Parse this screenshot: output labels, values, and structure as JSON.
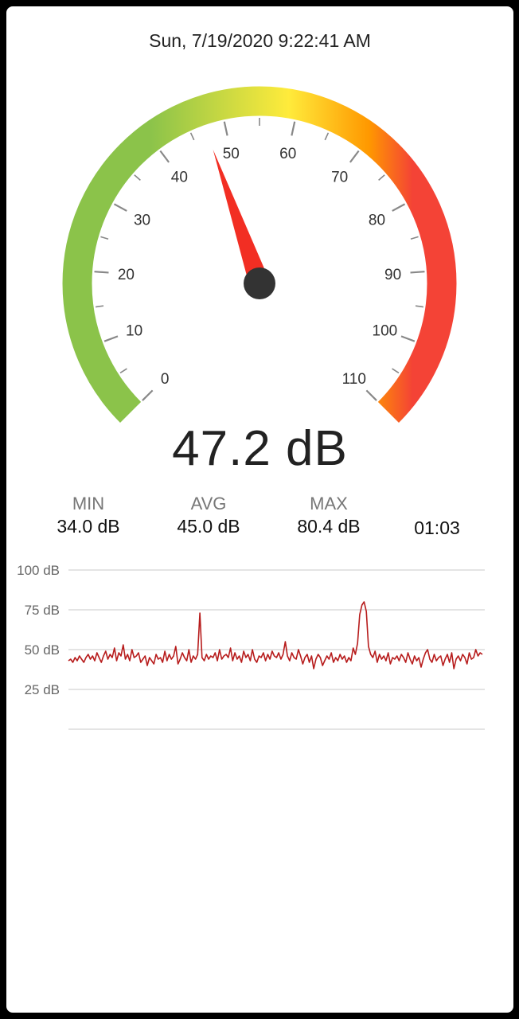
{
  "datetime": "Sun, 7/19/2020 9:22:41 AM",
  "gauge": {
    "min": 0,
    "max": 110,
    "value": 47.2,
    "tick_labels": [
      "0",
      "10",
      "20",
      "30",
      "40",
      "50",
      "60",
      "70",
      "80",
      "90",
      "100",
      "110"
    ],
    "colors": [
      "#8bc34a",
      "#ffeb3b",
      "#ff9800",
      "#f44336"
    ],
    "needle_color": "#f22e23",
    "hub_color": "#333333"
  },
  "reading": "47.2 dB",
  "stats": {
    "min_label": "MIN",
    "min_value": "34.0 dB",
    "avg_label": "AVG",
    "avg_value": "45.0 dB",
    "max_label": "MAX",
    "max_value": "80.4 dB",
    "elapsed": "01:03"
  },
  "chart_data": {
    "type": "line",
    "ylim": [
      0,
      100
    ],
    "ytick_labels": [
      "100 dB",
      "75 dB",
      "50 dB",
      "25 dB"
    ],
    "grid": true,
    "series": [
      {
        "color": "#b71c1c",
        "values": [
          43,
          44,
          42,
          45,
          43,
          46,
          44,
          42,
          45,
          47,
          44,
          46,
          43,
          48,
          45,
          42,
          46,
          49,
          44,
          47,
          45,
          51,
          43,
          48,
          46,
          53,
          44,
          47,
          43,
          50,
          45,
          46,
          48,
          42,
          44,
          46,
          40,
          45,
          43,
          41,
          47,
          44,
          45,
          42,
          49,
          43,
          47,
          44,
          46,
          52,
          41,
          44,
          48,
          45,
          43,
          50,
          42,
          46,
          44,
          47,
          73,
          45,
          43,
          47,
          44,
          46,
          45,
          48,
          43,
          50,
          44,
          46,
          47,
          45,
          51,
          43,
          48,
          44,
          46,
          42,
          49,
          45,
          47,
          43,
          50,
          44,
          42,
          46,
          45,
          48,
          43,
          47,
          44,
          49,
          46,
          45,
          48,
          44,
          47,
          55,
          46,
          43,
          48,
          45,
          44,
          50,
          46,
          41,
          45,
          47,
          42,
          46,
          38,
          44,
          47,
          45,
          40,
          43,
          46,
          44,
          48,
          42,
          45,
          43,
          47,
          44,
          46,
          42,
          45,
          43,
          51,
          47,
          54,
          72,
          78,
          80,
          74,
          52,
          47,
          45,
          49,
          42,
          47,
          44,
          46,
          43,
          48,
          41,
          45,
          44,
          46,
          43,
          47,
          45,
          42,
          48,
          44,
          41,
          46,
          43,
          45,
          39,
          44,
          48,
          50,
          44,
          42,
          47,
          43,
          45,
          46,
          40,
          44,
          47,
          42,
          48,
          38,
          44,
          46,
          43,
          47,
          45,
          41,
          48,
          44,
          45,
          50,
          46,
          48,
          47
        ]
      }
    ]
  }
}
